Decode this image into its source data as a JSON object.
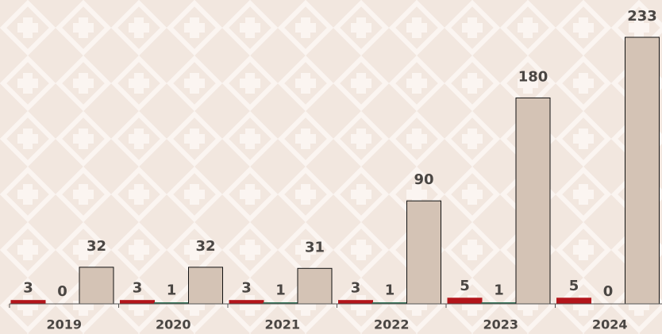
{
  "chart_data": {
    "type": "bar",
    "categories": [
      "2019",
      "2020",
      "2021",
      "2022",
      "2023",
      "2024"
    ],
    "series": [
      {
        "color": "#b3151b",
        "values": [
          3,
          3,
          3,
          3,
          5,
          5
        ]
      },
      {
        "color": "#2f6e52",
        "values": [
          0,
          1,
          1,
          1,
          1,
          0
        ]
      },
      {
        "color": "#d4c3b5",
        "values": [
          32,
          32,
          31,
          90,
          180,
          233
        ]
      }
    ],
    "ylim": [
      0,
      233
    ]
  }
}
